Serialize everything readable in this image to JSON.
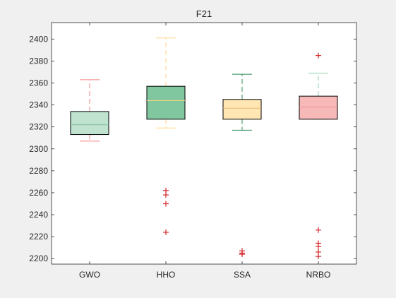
{
  "chart_data": {
    "type": "box",
    "title": "F21",
    "xlabel": "",
    "ylabel": "",
    "ylim": [
      2195,
      2415
    ],
    "yticks": [
      2200,
      2220,
      2240,
      2260,
      2280,
      2300,
      2320,
      2340,
      2360,
      2380,
      2400
    ],
    "grid": false,
    "categories": [
      "GWO",
      "HHO",
      "SSA",
      "NRBO"
    ],
    "boxes": [
      {
        "name": "GWO",
        "q1": 2313,
        "median": 2322,
        "q3": 2334,
        "whisker_low": 2307,
        "whisker_high": 2363,
        "outliers": [],
        "fill": "#bfe3cf",
        "median_color": "#7fbf9a",
        "whisker_color": "#f08080"
      },
      {
        "name": "HHO",
        "q1": 2327,
        "median": 2344,
        "q3": 2357,
        "whisker_low": 2319,
        "whisker_high": 2401,
        "outliers": [
          2224,
          2250,
          2258,
          2262
        ],
        "fill": "#80c69f",
        "median_color": "#ffd580",
        "whisker_color": "#ffd580"
      },
      {
        "name": "SSA",
        "q1": 2327,
        "median": 2337,
        "q3": 2345,
        "whisker_low": 2317,
        "whisker_high": 2368,
        "outliers": [
          2204,
          2205,
          2207
        ],
        "fill": "#ffe6b3",
        "median_color": "#e8b870",
        "whisker_color": "#2e8b57"
      },
      {
        "name": "NRBO",
        "q1": 2327,
        "median": 2338,
        "q3": 2348,
        "whisker_low": 2327,
        "whisker_high": 2369,
        "outliers": [
          2202,
          2206,
          2211,
          2214,
          2226,
          2385
        ],
        "fill": "#f7b8b8",
        "median_color": "#f49090",
        "whisker_color": "#8fd1ad"
      }
    ],
    "outlier_color": "#d62728",
    "box_edge_color": "#000000"
  }
}
